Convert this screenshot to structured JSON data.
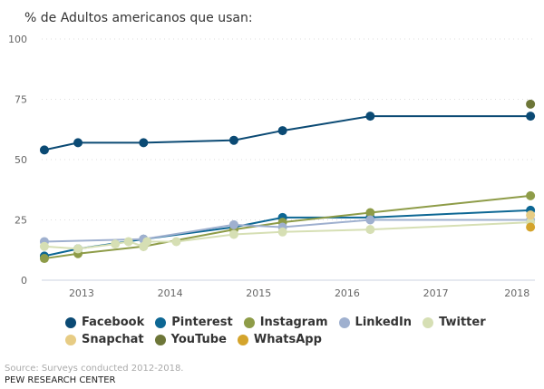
{
  "chart_data": {
    "type": "line",
    "title": "% de Adultos americanos que usan:",
    "xlabel": "",
    "ylabel": "",
    "ylim": [
      0,
      100
    ],
    "xlim": [
      2012.55,
      2018.12
    ],
    "yticks": [
      0,
      25,
      50,
      75,
      100
    ],
    "xticks": [
      2013,
      2014,
      2015,
      2016,
      2017,
      2018
    ],
    "grid": true,
    "legend_position": "bottom",
    "series": [
      {
        "name": "Facebook",
        "color": "#0b4a74",
        "points": [
          [
            2012.58,
            54
          ],
          [
            2012.96,
            57
          ],
          [
            2013.7,
            57
          ],
          [
            2014.72,
            58
          ],
          [
            2015.27,
            62
          ],
          [
            2016.26,
            68
          ],
          [
            2018.07,
            68
          ]
        ]
      },
      {
        "name": "Pinterest",
        "color": "#0d6794",
        "points": [
          [
            2012.58,
            10
          ],
          [
            2012.96,
            13
          ],
          [
            2013.7,
            17
          ],
          [
            2014.72,
            22
          ],
          [
            2015.27,
            26
          ],
          [
            2016.26,
            26
          ],
          [
            2018.07,
            29
          ]
        ]
      },
      {
        "name": "Instagram",
        "color": "#8e9c48",
        "points": [
          [
            2012.58,
            9
          ],
          [
            2012.96,
            11
          ],
          [
            2013.7,
            14
          ],
          [
            2014.72,
            21
          ],
          [
            2015.27,
            24
          ],
          [
            2016.26,
            28
          ],
          [
            2018.07,
            35
          ]
        ]
      },
      {
        "name": "LinkedIn",
        "color": "#9fb0cf",
        "points": [
          [
            2012.58,
            16
          ],
          [
            2013.7,
            17
          ],
          [
            2014.72,
            23
          ],
          [
            2015.27,
            22
          ],
          [
            2016.26,
            25
          ],
          [
            2018.07,
            25
          ]
        ]
      },
      {
        "name": "Twitter",
        "color": "#d6dfb4",
        "points": [
          [
            2012.58,
            14
          ],
          [
            2012.96,
            13
          ],
          [
            2013.38,
            15
          ],
          [
            2013.53,
            16
          ],
          [
            2013.7,
            14
          ],
          [
            2013.74,
            16
          ],
          [
            2014.07,
            16
          ],
          [
            2014.72,
            19
          ],
          [
            2015.27,
            20
          ],
          [
            2016.26,
            21
          ],
          [
            2018.07,
            24
          ]
        ]
      },
      {
        "name": "Snapchat",
        "color": "#e7cc84",
        "points": [
          [
            2018.07,
            27
          ]
        ]
      },
      {
        "name": "YouTube",
        "color": "#6d7638",
        "points": [
          [
            2018.07,
            73
          ]
        ]
      },
      {
        "name": "WhatsApp",
        "color": "#d4a42c",
        "points": [
          [
            2018.07,
            22
          ]
        ]
      }
    ]
  },
  "footer": {
    "source": "Source: Surveys conducted 2012-2018.",
    "org": "PEW RESEARCH CENTER"
  }
}
